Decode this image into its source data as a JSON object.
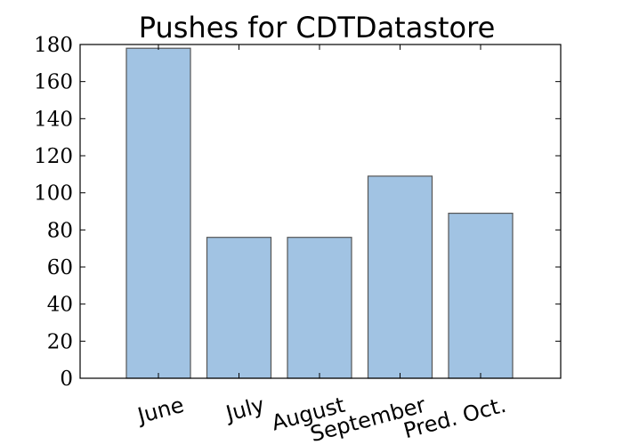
{
  "chart_data": {
    "type": "bar",
    "title": "Pushes for CDTDatastore",
    "xlabel": "",
    "ylabel": "",
    "categories": [
      "June",
      "July",
      "August",
      "September",
      "Pred. Oct."
    ],
    "values": [
      178,
      76,
      76,
      109,
      89
    ],
    "ylim": [
      0,
      180
    ],
    "yticks": [
      "0",
      "20",
      "40",
      "60",
      "80",
      "100",
      "120",
      "140",
      "160",
      "180"
    ],
    "xtick_rotation_deg": 15,
    "grid": false,
    "legend": "none",
    "bar_color": "#a1c3e3",
    "bar_edge_color": "#555555"
  }
}
